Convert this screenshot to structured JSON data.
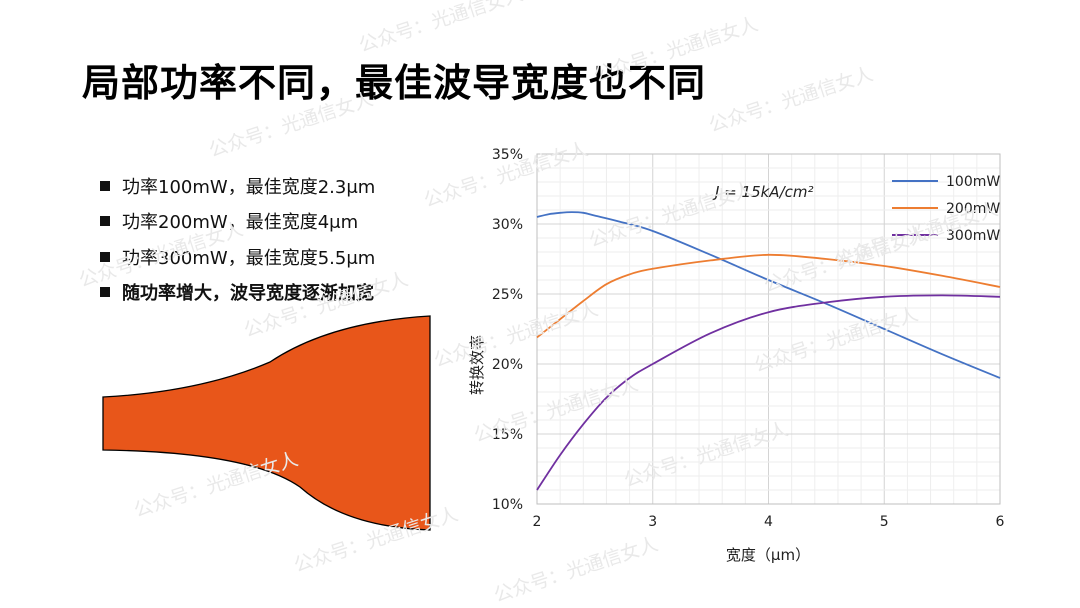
{
  "slide": {
    "title": "局部功率不同，最佳波导宽度也不同",
    "bullets": [
      {
        "text": "功率100mW，最佳宽度2.3μm",
        "bold": false
      },
      {
        "text": "功率200mW，最佳宽度4μm",
        "bold": false
      },
      {
        "text": "功率300mW，最佳宽度5.5μm",
        "bold": false
      },
      {
        "text": "随功率增大，波导宽度逐渐加宽",
        "bold": true
      }
    ],
    "watermark": "公众号：光通信女人",
    "taper_color": "#E8561A"
  },
  "chart_data": {
    "type": "line",
    "xlabel": "宽度（μm）",
    "ylabel": "转换效率",
    "xlim": [
      2,
      6
    ],
    "ylim": [
      10,
      35
    ],
    "x_ticks": [
      "2",
      "3",
      "4",
      "5",
      "6"
    ],
    "y_ticks": [
      "10%",
      "15%",
      "20%",
      "25%",
      "30%",
      "35%"
    ],
    "annotation": "J = 15kA/cm²",
    "grid": true,
    "legend_position": "top-right",
    "series": [
      {
        "name": "100mW",
        "color": "#4472C4",
        "x": [
          2.0,
          2.1,
          2.2,
          2.3,
          2.4,
          2.5,
          2.7,
          3.0,
          3.5,
          4.0,
          4.5,
          5.0,
          5.5,
          6.0
        ],
        "y": [
          30.5,
          30.7,
          30.8,
          30.85,
          30.8,
          30.6,
          30.2,
          29.5,
          27.8,
          26.0,
          24.3,
          22.5,
          20.7,
          19.0
        ]
      },
      {
        "name": "200mW",
        "color": "#ED7D31",
        "x": [
          2.0,
          2.2,
          2.4,
          2.6,
          2.8,
          3.0,
          3.5,
          4.0,
          4.5,
          5.0,
          5.5,
          6.0
        ],
        "y": [
          21.9,
          23.2,
          24.5,
          25.7,
          26.4,
          26.8,
          27.4,
          27.8,
          27.5,
          27.0,
          26.3,
          25.5
        ]
      },
      {
        "name": "300mW",
        "color": "#7030A0",
        "x": [
          2.0,
          2.2,
          2.4,
          2.6,
          2.8,
          3.0,
          3.5,
          4.0,
          4.5,
          5.0,
          5.5,
          6.0
        ],
        "y": [
          11.0,
          13.5,
          15.7,
          17.6,
          19.0,
          20.0,
          22.2,
          23.7,
          24.4,
          24.8,
          24.9,
          24.8
        ]
      }
    ]
  }
}
